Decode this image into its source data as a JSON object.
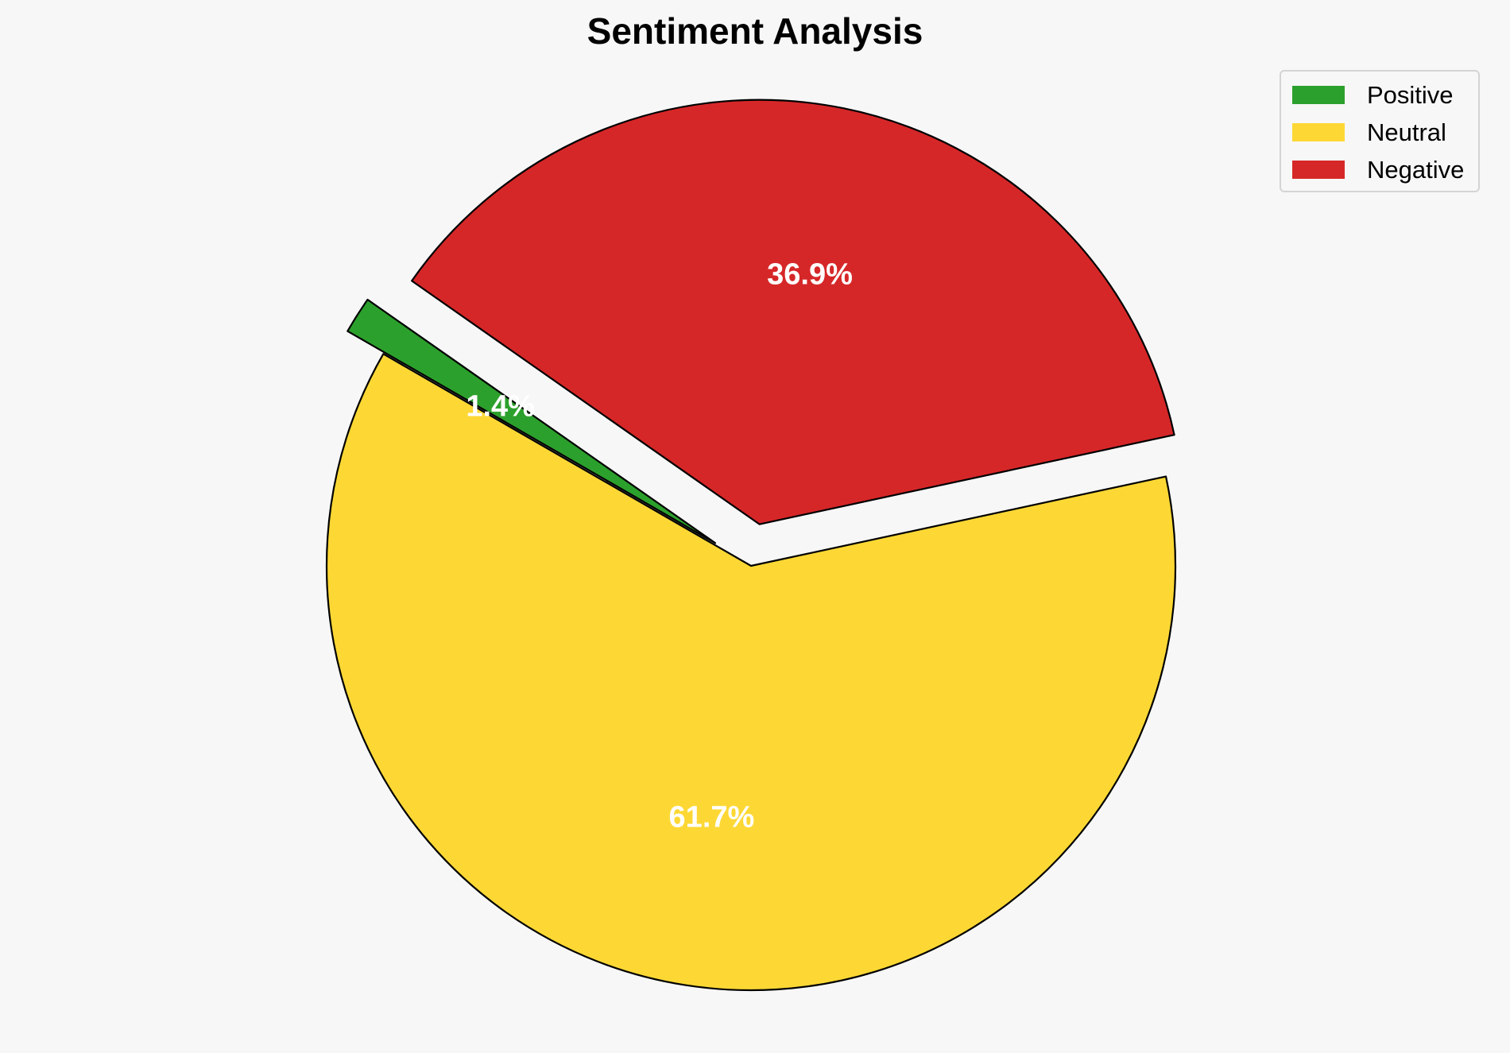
{
  "chart_data": {
    "type": "pie",
    "title": "Sentiment Analysis",
    "categories": [
      "Positive",
      "Neutral",
      "Negative"
    ],
    "values": [
      1.4,
      61.7,
      36.9
    ],
    "labels": [
      "1.4%",
      "61.7%",
      "36.9%"
    ],
    "colors": [
      "#2ca02c",
      "#fdd835",
      "#d62728"
    ],
    "exploded": [
      true,
      false,
      true
    ],
    "legend_position": "top-right"
  }
}
